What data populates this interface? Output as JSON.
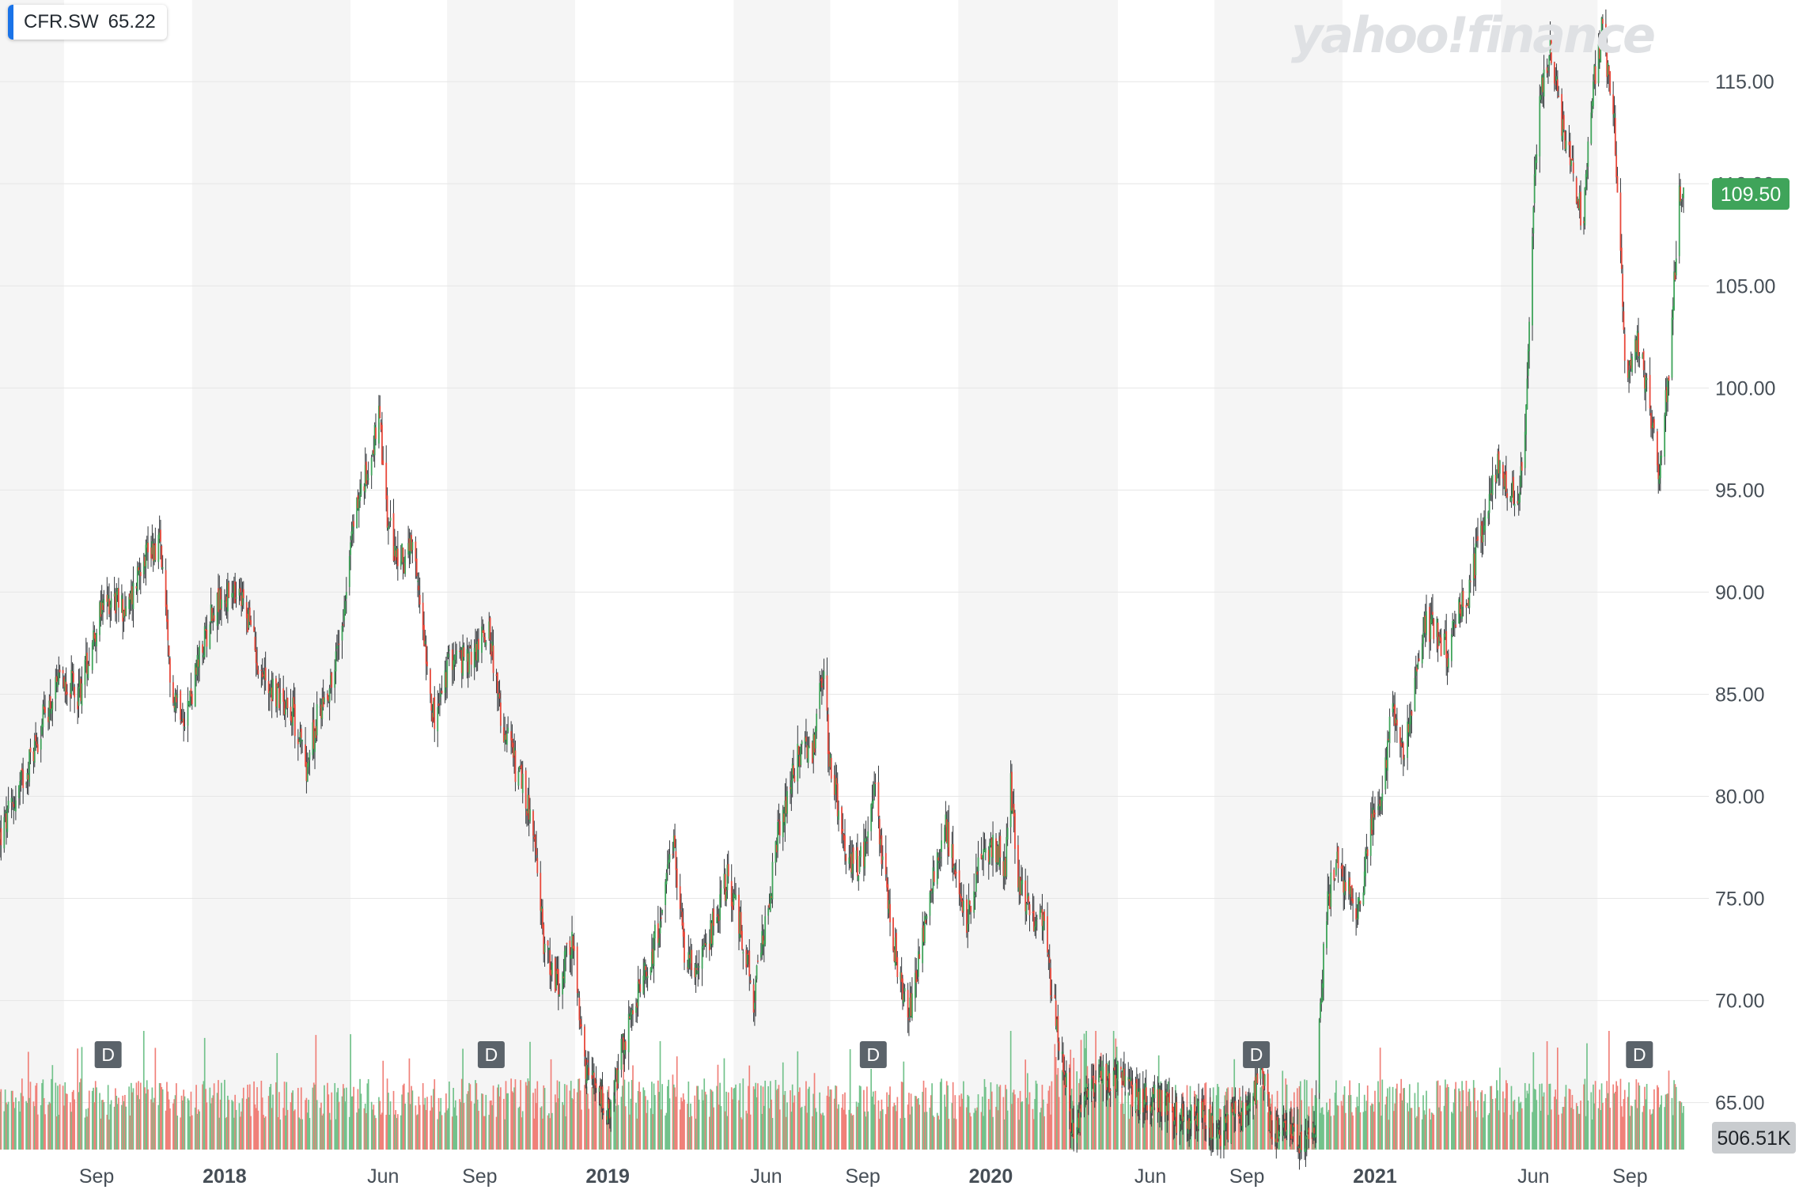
{
  "ticker": {
    "symbol": "CFR.SW",
    "value": "65.22",
    "accent_color": "#1a73e8"
  },
  "watermark": "yahoo!finance",
  "chart_data": {
    "type": "candlestick",
    "subplot": "volume bars",
    "y_axis": {
      "side": "right",
      "ticks": [
        "65.00",
        "70.00",
        "75.00",
        "80.00",
        "85.00",
        "90.00",
        "95.00",
        "100.00",
        "105.00",
        "110.00",
        "115.00"
      ],
      "ylim": [
        62.7,
        119
      ]
    },
    "x_axis": {
      "range": [
        "2017-06-01",
        "2021-10-31"
      ],
      "ticks": [
        {
          "date": "2017-09-01",
          "label": "Sep",
          "bold": false
        },
        {
          "date": "2018-01-01",
          "label": "2018",
          "bold": true
        },
        {
          "date": "2018-06-01",
          "label": "Jun",
          "bold": false
        },
        {
          "date": "2018-09-01",
          "label": "Sep",
          "bold": false
        },
        {
          "date": "2019-01-01",
          "label": "2019",
          "bold": true
        },
        {
          "date": "2019-06-01",
          "label": "Jun",
          "bold": false
        },
        {
          "date": "2019-09-01",
          "label": "Sep",
          "bold": false
        },
        {
          "date": "2020-01-01",
          "label": "2020",
          "bold": true
        },
        {
          "date": "2020-06-01",
          "label": "Jun",
          "bold": false
        },
        {
          "date": "2020-09-01",
          "label": "Sep",
          "bold": false
        },
        {
          "date": "2021-01-01",
          "label": "2021",
          "bold": true
        },
        {
          "date": "2021-06-01",
          "label": "Jun",
          "bold": false
        },
        {
          "date": "2021-09-01",
          "label": "Sep",
          "bold": false
        }
      ]
    },
    "month_shading": {
      "stripe_boundaries": [
        "2017-06-01",
        "2017-08-01",
        "2017-12-01",
        "2018-05-01",
        "2018-08-01",
        "2018-12-01",
        "2019-05-01",
        "2019-08-01",
        "2019-12-01",
        "2020-05-01",
        "2020-08-01",
        "2020-12-01",
        "2021-05-01",
        "2021-08-01"
      ],
      "stripe_color": "#f5f5f5"
    },
    "last_price": {
      "value": "109.50",
      "color": "#3fa45a"
    },
    "last_volume": {
      "value": "506.51K",
      "color": "#c9cccf"
    },
    "dividend_markers": [
      {
        "date": "2017-09-12",
        "label": "D"
      },
      {
        "date": "2018-09-12",
        "label": "D"
      },
      {
        "date": "2019-09-11",
        "label": "D"
      },
      {
        "date": "2020-09-10",
        "label": "D"
      },
      {
        "date": "2021-09-10",
        "label": "D"
      }
    ],
    "grid": true,
    "up_color": "#3fa45a",
    "down_color": "#e8483b",
    "volume_up_color": "#72c28b",
    "volume_down_color": "#f08079",
    "close_series": [
      [
        "2017-06-01",
        78.0
      ],
      [
        "2017-06-15",
        79.8
      ],
      [
        "2017-07-01",
        82.0
      ],
      [
        "2017-07-15",
        84.2
      ],
      [
        "2017-08-01",
        85.8
      ],
      [
        "2017-08-15",
        85.0
      ],
      [
        "2017-09-01",
        88.5
      ],
      [
        "2017-09-15",
        89.8
      ],
      [
        "2017-10-01",
        89.0
      ],
      [
        "2017-10-15",
        92.0
      ],
      [
        "2017-11-01",
        92.4
      ],
      [
        "2017-11-10",
        85.5
      ],
      [
        "2017-11-25",
        84.0
      ],
      [
        "2017-12-10",
        87.0
      ],
      [
        "2017-12-20",
        89.2
      ],
      [
        "2018-01-05",
        89.8
      ],
      [
        "2018-01-20",
        89.5
      ],
      [
        "2018-02-05",
        86.0
      ],
      [
        "2018-02-20",
        85.0
      ],
      [
        "2018-03-05",
        84.5
      ],
      [
        "2018-03-20",
        81.5
      ],
      [
        "2018-04-01",
        84.2
      ],
      [
        "2018-04-15",
        86.0
      ],
      [
        "2018-04-25",
        89.5
      ],
      [
        "2018-05-05",
        94.0
      ],
      [
        "2018-05-15",
        95.5
      ],
      [
        "2018-05-28",
        98.5
      ],
      [
        "2018-06-05",
        93.5
      ],
      [
        "2018-06-15",
        91.5
      ],
      [
        "2018-06-28",
        92.0
      ],
      [
        "2018-07-08",
        89.0
      ],
      [
        "2018-07-20",
        83.5
      ],
      [
        "2018-08-05",
        87.0
      ],
      [
        "2018-08-20",
        86.5
      ],
      [
        "2018-09-01",
        87.5
      ],
      [
        "2018-09-10",
        88.5
      ],
      [
        "2018-09-20",
        84.0
      ],
      [
        "2018-10-05",
        81.5
      ],
      [
        "2018-10-20",
        79.0
      ],
      [
        "2018-11-01",
        73.0
      ],
      [
        "2018-11-15",
        70.5
      ],
      [
        "2018-11-28",
        73.0
      ],
      [
        "2018-12-10",
        66.5
      ],
      [
        "2018-12-22",
        65.5
      ],
      [
        "2019-01-03",
        64.0
      ],
      [
        "2019-01-12",
        67.0
      ],
      [
        "2019-01-25",
        69.5
      ],
      [
        "2019-02-08",
        71.5
      ],
      [
        "2019-02-20",
        74.0
      ],
      [
        "2019-03-05",
        77.5
      ],
      [
        "2019-03-15",
        72.5
      ],
      [
        "2019-03-30",
        71.5
      ],
      [
        "2019-04-10",
        73.5
      ],
      [
        "2019-04-25",
        76.0
      ],
      [
        "2019-05-08",
        73.5
      ],
      [
        "2019-05-20",
        70.0
      ],
      [
        "2019-06-01",
        74.0
      ],
      [
        "2019-06-12",
        78.0
      ],
      [
        "2019-06-25",
        81.0
      ],
      [
        "2019-07-05",
        82.5
      ],
      [
        "2019-07-15",
        82.0
      ],
      [
        "2019-07-25",
        86.0
      ],
      [
        "2019-08-01",
        81.5
      ],
      [
        "2019-08-10",
        79.0
      ],
      [
        "2019-08-20",
        76.5
      ],
      [
        "2019-09-01",
        77.0
      ],
      [
        "2019-09-12",
        80.5
      ],
      [
        "2019-09-25",
        74.5
      ],
      [
        "2019-10-05",
        71.5
      ],
      [
        "2019-10-15",
        69.5
      ],
      [
        "2019-10-28",
        73.0
      ],
      [
        "2019-11-08",
        76.5
      ],
      [
        "2019-11-20",
        78.5
      ],
      [
        "2019-12-01",
        75.0
      ],
      [
        "2019-12-10",
        74.0
      ],
      [
        "2019-12-20",
        76.5
      ],
      [
        "2020-01-05",
        77.5
      ],
      [
        "2020-01-15",
        76.5
      ],
      [
        "2020-01-20",
        80.5
      ],
      [
        "2020-01-28",
        75.5
      ],
      [
        "2020-02-10",
        74.0
      ],
      [
        "2020-02-20",
        74.5
      ],
      [
        "2020-02-28",
        70.5
      ],
      [
        "2020-03-10",
        67.0
      ],
      [
        "2020-03-20",
        63.0
      ],
      [
        "2020-04-01",
        65.5
      ],
      [
        "2020-04-15",
        66.0
      ],
      [
        "2020-05-01",
        66.5
      ],
      [
        "2020-05-20",
        65.0
      ],
      [
        "2020-06-05",
        65.5
      ],
      [
        "2020-06-20",
        64.5
      ],
      [
        "2020-07-05",
        63.8
      ],
      [
        "2020-07-20",
        64.5
      ],
      [
        "2020-08-05",
        63.5
      ],
      [
        "2020-08-20",
        64.2
      ],
      [
        "2020-09-05",
        64.8
      ],
      [
        "2020-09-15",
        66.5
      ],
      [
        "2020-09-25",
        63.5
      ],
      [
        "2020-10-10",
        63.2
      ],
      [
        "2020-10-25",
        63.0
      ],
      [
        "2020-11-05",
        63.5
      ],
      [
        "2020-11-10",
        69.5
      ],
      [
        "2020-11-15",
        74.0
      ],
      [
        "2020-11-25",
        77.0
      ],
      [
        "2020-12-05",
        75.5
      ],
      [
        "2020-12-15",
        74.0
      ],
      [
        "2020-12-28",
        78.5
      ],
      [
        "2021-01-08",
        80.5
      ],
      [
        "2021-01-18",
        84.5
      ],
      [
        "2021-01-28",
        82.0
      ],
      [
        "2021-02-08",
        85.5
      ],
      [
        "2021-02-18",
        88.5
      ],
      [
        "2021-03-01",
        88.0
      ],
      [
        "2021-03-12",
        87.0
      ],
      [
        "2021-03-22",
        89.5
      ],
      [
        "2021-04-01",
        90.0
      ],
      [
        "2021-04-12",
        93.0
      ],
      [
        "2021-04-20",
        94.5
      ],
      [
        "2021-04-28",
        96.0
      ],
      [
        "2021-05-08",
        95.0
      ],
      [
        "2021-05-18",
        94.5
      ],
      [
        "2021-05-25",
        98.5
      ],
      [
        "2021-05-28",
        103.0
      ],
      [
        "2021-06-01",
        109.5
      ],
      [
        "2021-06-08",
        114.5
      ],
      [
        "2021-06-18",
        116.5
      ],
      [
        "2021-06-28",
        113.0
      ],
      [
        "2021-07-08",
        111.0
      ],
      [
        "2021-07-18",
        108.0
      ],
      [
        "2021-07-28",
        115.0
      ],
      [
        "2021-08-05",
        117.5
      ],
      [
        "2021-08-15",
        114.5
      ],
      [
        "2021-08-22",
        108.5
      ],
      [
        "2021-08-28",
        100.5
      ],
      [
        "2021-09-08",
        102.5
      ],
      [
        "2021-09-18",
        100.0
      ],
      [
        "2021-09-28",
        96.0
      ],
      [
        "2021-10-08",
        100.5
      ],
      [
        "2021-10-18",
        109.5
      ],
      [
        "2021-10-22",
        109.5
      ]
    ]
  }
}
